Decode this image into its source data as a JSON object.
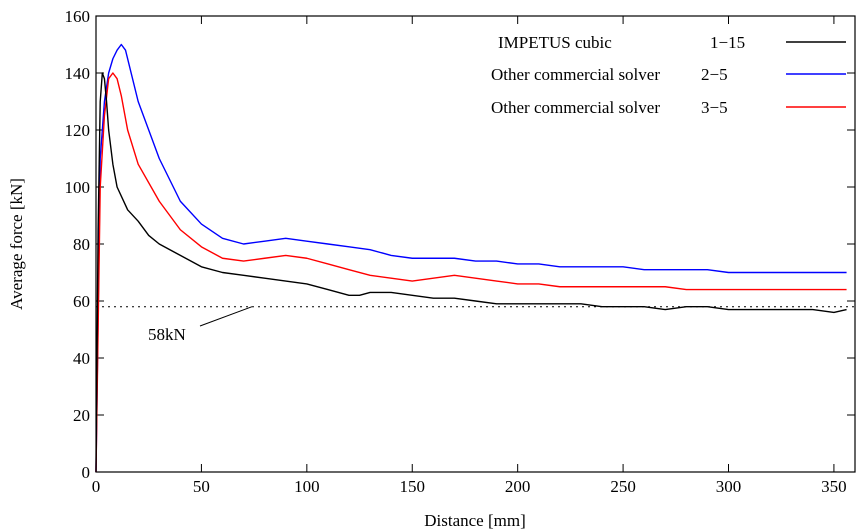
{
  "chart_data": {
    "type": "line",
    "title": "",
    "xlabel": "Distance [mm]",
    "ylabel": "Average force [kN]",
    "xlim": [
      0,
      360
    ],
    "ylim": [
      0,
      160
    ],
    "x_ticks": [
      0,
      50,
      100,
      150,
      200,
      250,
      300,
      350
    ],
    "y_ticks": [
      0,
      20,
      40,
      60,
      80,
      100,
      120,
      140,
      160
    ],
    "grid": false,
    "legend_position": "top-right",
    "series": [
      {
        "name": "IMPETUS  cubic",
        "id": "1−15",
        "color": "#000000",
        "x": [
          0,
          1,
          2,
          3,
          4,
          5,
          6,
          8,
          10,
          15,
          20,
          25,
          30,
          40,
          50,
          60,
          70,
          80,
          90,
          100,
          110,
          120,
          125,
          130,
          140,
          150,
          160,
          170,
          180,
          190,
          200,
          210,
          220,
          230,
          240,
          250,
          260,
          270,
          280,
          290,
          300,
          310,
          320,
          330,
          340,
          350,
          356
        ],
        "y": [
          0,
          85,
          130,
          140,
          138,
          130,
          120,
          108,
          100,
          92,
          88,
          83,
          80,
          76,
          72,
          70,
          69,
          68,
          67,
          66,
          64,
          62,
          62,
          63,
          63,
          62,
          61,
          61,
          60,
          59,
          59,
          59,
          59,
          59,
          58,
          58,
          58,
          57,
          58,
          58,
          57,
          57,
          57,
          57,
          57,
          56,
          57
        ]
      },
      {
        "name": "Other commercial solver",
        "id": "2−5",
        "color": "#0000ff",
        "x": [
          0,
          2,
          4,
          6,
          8,
          10,
          12,
          14,
          20,
          30,
          40,
          50,
          60,
          70,
          80,
          90,
          100,
          110,
          120,
          130,
          140,
          150,
          160,
          170,
          180,
          190,
          200,
          210,
          220,
          230,
          240,
          250,
          260,
          270,
          280,
          290,
          300,
          310,
          320,
          330,
          340,
          350,
          356
        ],
        "y": [
          0,
          110,
          130,
          140,
          145,
          148,
          150,
          148,
          130,
          110,
          95,
          87,
          82,
          80,
          81,
          82,
          81,
          80,
          79,
          78,
          76,
          75,
          75,
          75,
          74,
          74,
          73,
          73,
          72,
          72,
          72,
          72,
          71,
          71,
          71,
          71,
          70,
          70,
          70,
          70,
          70,
          70,
          70
        ]
      },
      {
        "name": "Other commercial solver",
        "id": "3−5",
        "color": "#ff0000",
        "x": [
          0,
          2,
          4,
          6,
          8,
          10,
          12,
          15,
          20,
          30,
          40,
          50,
          60,
          70,
          80,
          90,
          100,
          110,
          120,
          130,
          140,
          150,
          160,
          170,
          180,
          190,
          200,
          210,
          220,
          230,
          240,
          250,
          260,
          270,
          280,
          290,
          300,
          310,
          320,
          330,
          340,
          350,
          356
        ],
        "y": [
          0,
          100,
          125,
          138,
          140,
          138,
          132,
          120,
          108,
          95,
          85,
          79,
          75,
          74,
          75,
          76,
          75,
          73,
          71,
          69,
          68,
          67,
          68,
          69,
          68,
          67,
          66,
          66,
          65,
          65,
          65,
          65,
          65,
          65,
          64,
          64,
          64,
          64,
          64,
          64,
          64,
          64,
          64
        ]
      }
    ],
    "reference_line": {
      "y": 58,
      "style": "dotted",
      "label": "58kN"
    }
  }
}
